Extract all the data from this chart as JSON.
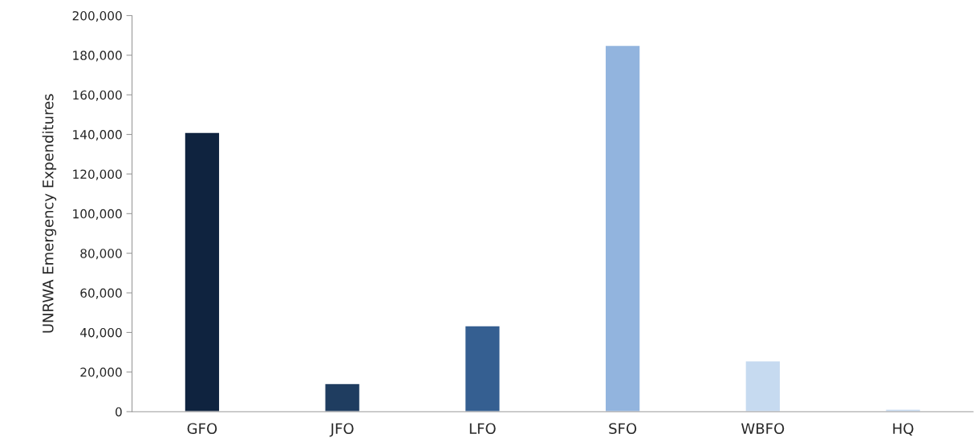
{
  "chart_data": {
    "type": "bar",
    "ylabel": "UNRWA Emergency Expenditures",
    "categories": [
      "GFO",
      "JFO",
      "LFO",
      "SFO",
      "WBFO",
      "HQ"
    ],
    "values": [
      141000,
      14200,
      43400,
      185000,
      25700,
      1300
    ],
    "colors": [
      "#0f233f",
      "#1f3d60",
      "#355f91",
      "#92b4de",
      "#c6daf0",
      "#c6daf0"
    ],
    "ylim": [
      0,
      200000
    ],
    "yticks": [
      {
        "value": 0,
        "label": "0"
      },
      {
        "value": 20000,
        "label": "20,000"
      },
      {
        "value": 40000,
        "label": "40,000"
      },
      {
        "value": 60000,
        "label": "60,000"
      },
      {
        "value": 80000,
        "label": "80,000"
      },
      {
        "value": 100000,
        "label": "100,000"
      },
      {
        "value": 120000,
        "label": "120,000"
      },
      {
        "value": 140000,
        "label": "140,000"
      },
      {
        "value": 160000,
        "label": "160,000"
      },
      {
        "value": 180000,
        "label": "180,000"
      },
      {
        "value": 200000,
        "label": "200,000"
      }
    ],
    "grid": false,
    "legend": false
  }
}
